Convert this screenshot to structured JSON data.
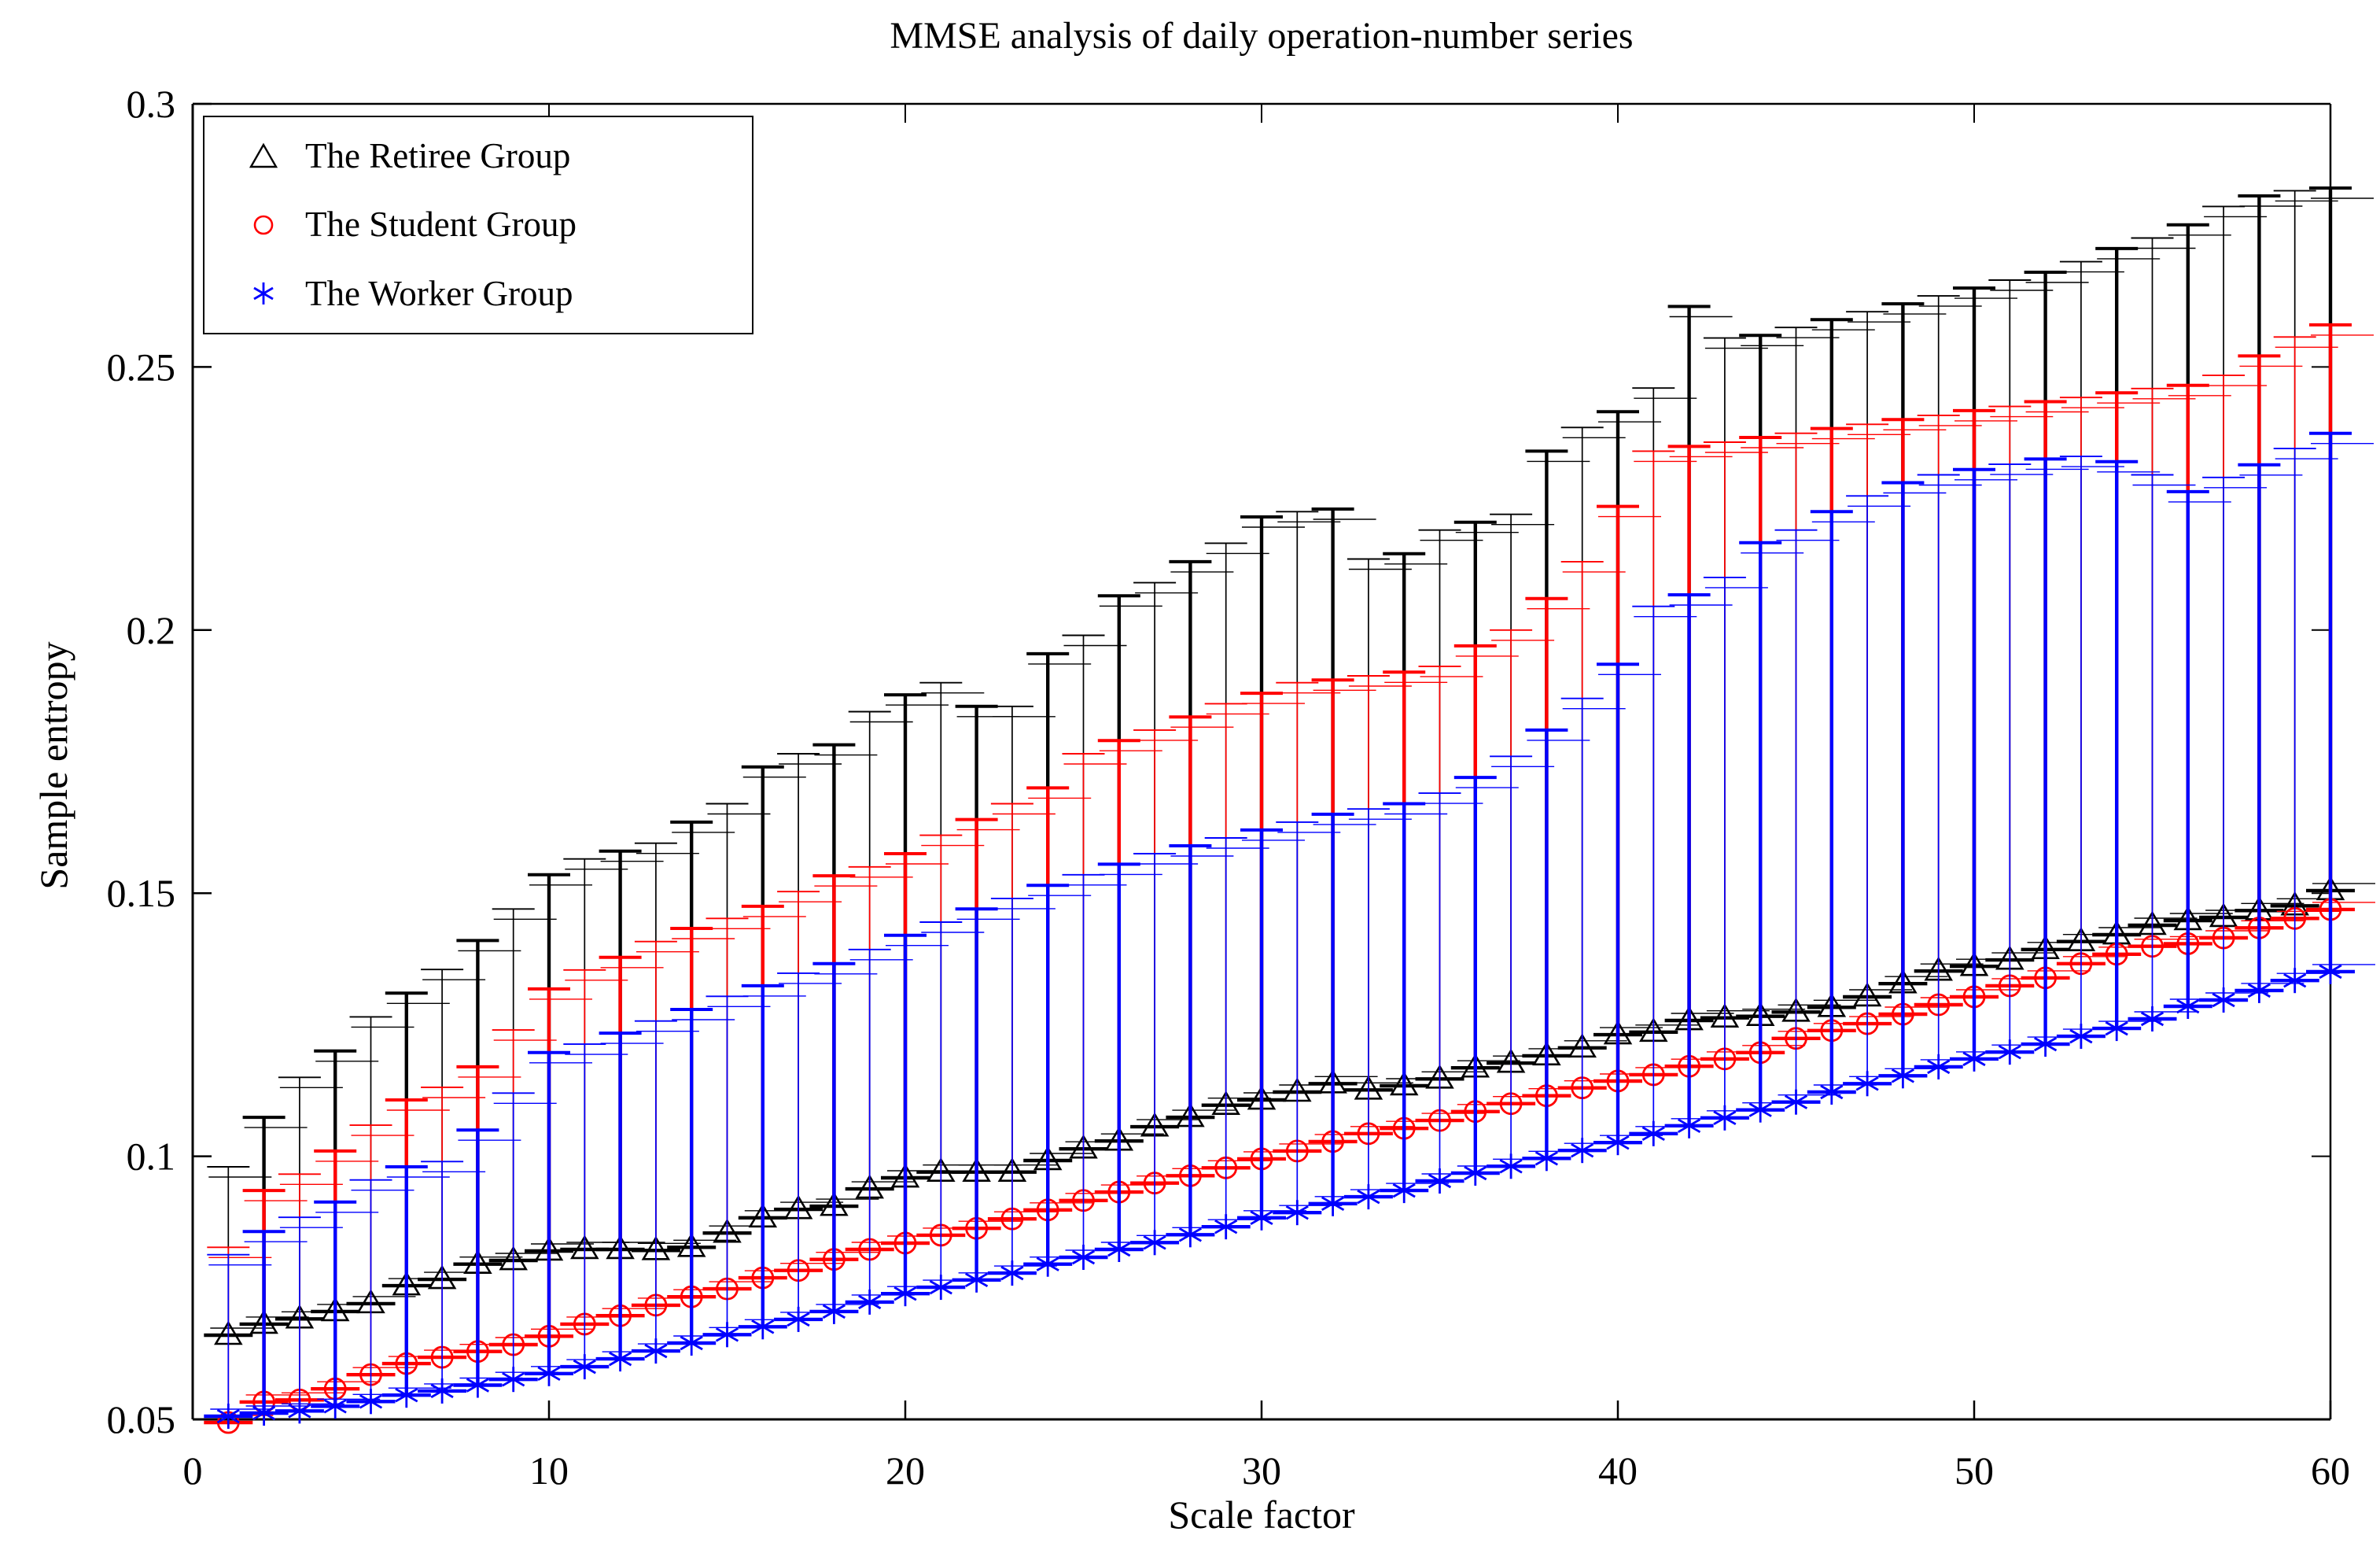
{
  "header": {
    "title": "MMSE analysis of daily operation-number series"
  },
  "axes": {
    "xlabel": "Scale factor",
    "ylabel": "Sample entropy",
    "xlim": [
      0,
      60
    ],
    "ylim": [
      0.05,
      0.3
    ],
    "x_ticks": [
      0,
      10,
      20,
      30,
      40,
      50,
      60
    ],
    "x_tick_labels": [
      "0",
      "10",
      "20",
      "30",
      "40",
      "50",
      "60"
    ],
    "y_ticks": [
      0.05,
      0.1,
      0.15,
      0.2,
      0.25,
      0.3
    ],
    "y_tick_labels": [
      "0.05",
      "0.1",
      "0.15",
      "0.2",
      "0.25",
      "0.3"
    ],
    "grid": false,
    "box": true
  },
  "legend": {
    "position": "top-left",
    "items": [
      {
        "label": "The Retiree Group",
        "marker": "triangle",
        "color": "#000000"
      },
      {
        "label": "The Student Group",
        "marker": "circle",
        "color": "#ff0000"
      },
      {
        "label": "The Worker Group",
        "marker": "asterisk",
        "color": "#0000ff"
      }
    ]
  },
  "chart_data": {
    "type": "errorbar",
    "title": "MMSE analysis of daily operation-number series",
    "xlabel": "Scale factor",
    "ylabel": "Sample entropy",
    "xlim": [
      0,
      60
    ],
    "ylim": [
      0.05,
      0.3
    ],
    "x": [
      1,
      2,
      3,
      4,
      5,
      6,
      7,
      8,
      9,
      10,
      11,
      12,
      13,
      14,
      15,
      16,
      17,
      18,
      19,
      20,
      21,
      22,
      23,
      24,
      25,
      26,
      27,
      28,
      29,
      30,
      31,
      32,
      33,
      34,
      35,
      36,
      37,
      38,
      39,
      40,
      41,
      42,
      43,
      44,
      45,
      46,
      47,
      48,
      49,
      50,
      51,
      52,
      53,
      54,
      55,
      56,
      57,
      58,
      59,
      60
    ],
    "series": [
      {
        "name": "The Retiree Group",
        "color": "#000000",
        "marker": "triangle",
        "mean": [
          0.066,
          0.0681,
          0.0691,
          0.0705,
          0.072,
          0.0754,
          0.0766,
          0.0795,
          0.0802,
          0.082,
          0.0823,
          0.0823,
          0.0821,
          0.0827,
          0.0854,
          0.0883,
          0.0899,
          0.0905,
          0.0938,
          0.0959,
          0.097,
          0.097,
          0.097,
          0.0992,
          0.1014,
          0.1029,
          0.1056,
          0.1074,
          0.1097,
          0.1107,
          0.1122,
          0.1138,
          0.1126,
          0.1134,
          0.1147,
          0.1168,
          0.1177,
          0.1191,
          0.1206,
          0.1231,
          0.1236,
          0.1258,
          0.1263,
          0.1266,
          0.1274,
          0.1283,
          0.1303,
          0.1328,
          0.1352,
          0.1361,
          0.1373,
          0.1393,
          0.1408,
          0.1421,
          0.1439,
          0.1448,
          0.1454,
          0.1467,
          0.1476,
          0.1505
        ],
        "upper": [
          0.098,
          0.1074,
          0.115,
          0.12,
          0.1265,
          0.131,
          0.1355,
          0.141,
          0.147,
          0.1535,
          0.1565,
          0.158,
          0.1595,
          0.1635,
          0.167,
          0.174,
          0.1765,
          0.1782,
          0.1845,
          0.1877,
          0.19,
          0.1855,
          0.1855,
          0.1955,
          0.199,
          0.2065,
          0.209,
          0.213,
          0.2165,
          0.2215,
          0.2225,
          0.223,
          0.2135,
          0.2145,
          0.219,
          0.2205,
          0.222,
          0.234,
          0.2385,
          0.2415,
          0.246,
          0.2615,
          0.2555,
          0.256,
          0.2575,
          0.259,
          0.2605,
          0.262,
          0.2635,
          0.265,
          0.2665,
          0.268,
          0.27,
          0.2725,
          0.2745,
          0.277,
          0.2805,
          0.2825,
          0.2835,
          0.284
        ]
      },
      {
        "name": "The Student Group",
        "color": "#ff0000",
        "marker": "circle",
        "mean": [
          0.0494,
          0.0533,
          0.0537,
          0.0558,
          0.0585,
          0.0606,
          0.0618,
          0.0629,
          0.0642,
          0.0658,
          0.0681,
          0.0697,
          0.0717,
          0.0733,
          0.0748,
          0.0769,
          0.0783,
          0.0804,
          0.0823,
          0.0835,
          0.085,
          0.0863,
          0.0881,
          0.0898,
          0.0916,
          0.0932,
          0.0949,
          0.0963,
          0.0978,
          0.0995,
          0.101,
          0.1028,
          0.1043,
          0.1053,
          0.1068,
          0.1085,
          0.11,
          0.1115,
          0.113,
          0.1143,
          0.1155,
          0.1171,
          0.1185,
          0.1197,
          0.1224,
          0.1239,
          0.1252,
          0.127,
          0.1288,
          0.1303,
          0.1324,
          0.1339,
          0.1366,
          0.1384,
          0.1399,
          0.1404,
          0.1415,
          0.1434,
          0.1452,
          0.1469
        ],
        "upper": [
          0.0827,
          0.0935,
          0.0966,
          0.101,
          0.1059,
          0.1107,
          0.1131,
          0.117,
          0.124,
          0.1318,
          0.1354,
          0.1378,
          0.1408,
          0.1433,
          0.1452,
          0.1475,
          0.1503,
          0.1533,
          0.155,
          0.1575,
          0.161,
          0.164,
          0.167,
          0.17,
          0.1765,
          0.179,
          0.181,
          0.1835,
          0.186,
          0.188,
          0.19,
          0.1905,
          0.1913,
          0.192,
          0.1931,
          0.197,
          0.2,
          0.206,
          0.213,
          0.2235,
          0.234,
          0.2349,
          0.2357,
          0.2366,
          0.2374,
          0.2383,
          0.2391,
          0.24,
          0.2408,
          0.2417,
          0.2425,
          0.2434,
          0.2442,
          0.2451,
          0.2459,
          0.2465,
          0.2484,
          0.2521,
          0.2557,
          0.258
        ]
      },
      {
        "name": "The Worker Group",
        "color": "#0000ff",
        "marker": "asterisk",
        "mean": [
          0.0506,
          0.0512,
          0.0516,
          0.0525,
          0.0534,
          0.0546,
          0.0554,
          0.0565,
          0.0576,
          0.0587,
          0.06,
          0.0615,
          0.063,
          0.0645,
          0.0661,
          0.0676,
          0.069,
          0.0705,
          0.0723,
          0.0739,
          0.0751,
          0.0765,
          0.0778,
          0.0795,
          0.0808,
          0.0823,
          0.0836,
          0.0851,
          0.0866,
          0.0883,
          0.0893,
          0.091,
          0.0923,
          0.0935,
          0.0953,
          0.0968,
          0.0981,
          0.0996,
          0.1011,
          0.1026,
          0.1043,
          0.1058,
          0.1073,
          0.1088,
          0.1103,
          0.1122,
          0.1138,
          0.1153,
          0.117,
          0.1185,
          0.1198,
          0.1213,
          0.1228,
          0.1243,
          0.1261,
          0.1285,
          0.1297,
          0.1315,
          0.1334,
          0.1351
        ],
        "upper": [
          0.0813,
          0.0857,
          0.0884,
          0.0913,
          0.0955,
          0.098,
          0.099,
          0.105,
          0.112,
          0.1197,
          0.1213,
          0.1234,
          0.1257,
          0.1279,
          0.1304,
          0.1324,
          0.1348,
          0.1366,
          0.1393,
          0.142,
          0.1445,
          0.147,
          0.149,
          0.1515,
          0.1535,
          0.1555,
          0.1575,
          0.159,
          0.1605,
          0.162,
          0.1635,
          0.165,
          0.166,
          0.167,
          0.169,
          0.172,
          0.176,
          0.181,
          0.187,
          0.1935,
          0.2045,
          0.2067,
          0.21,
          0.2166,
          0.219,
          0.2225,
          0.2255,
          0.228,
          0.2295,
          0.2305,
          0.2315,
          0.2325,
          0.233,
          0.232,
          0.2295,
          0.2263,
          0.229,
          0.2314,
          0.2345,
          0.2374
        ]
      }
    ],
    "errorbar_style": "upper-one-sided",
    "legend_position": "top-left"
  }
}
